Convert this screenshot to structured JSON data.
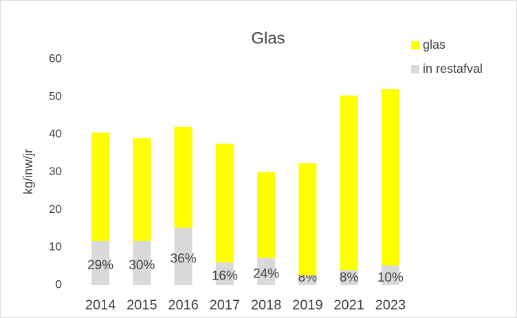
{
  "chart_data": {
    "type": "stacked_bar",
    "title": "Glas",
    "y_label": "kg/inw/jr",
    "categories": [
      "2014",
      "2015",
      "2016",
      "2017",
      "2018",
      "2019",
      "2021",
      "2023"
    ],
    "series": [
      {
        "name": "in restafval",
        "color": "#d9d9d9",
        "values": [
          11.7,
          11.7,
          15.2,
          6,
          7.2,
          2.6,
          4,
          5.2
        ]
      },
      {
        "name": "glas",
        "color": "#ffff00",
        "values": [
          28.8,
          27.3,
          26.8,
          31.5,
          22.8,
          29.8,
          46.3,
          46.8
        ]
      }
    ],
    "annotations": [
      "29%",
      "30%",
      "36%",
      "16%",
      "24%",
      "8%",
      "8%",
      "10%"
    ],
    "ylim": [
      0,
      60
    ],
    "yticks": [
      0,
      10,
      20,
      30,
      40,
      50,
      60
    ],
    "grid": false
  }
}
